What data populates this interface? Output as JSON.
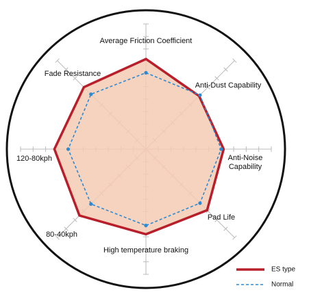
{
  "chart_data": {
    "type": "radar",
    "categories": [
      "Average Friction Coefficient",
      "Anti-Dust Capability",
      "Anti-Noise Capability",
      "Pad Life",
      "High temperature braking",
      "80-40kph",
      "120-80kph",
      "Fade Resistance"
    ],
    "rlim": [
      0,
      10
    ],
    "rticks": [
      1,
      2,
      3,
      4,
      5,
      6,
      7,
      8,
      9,
      10
    ],
    "series": [
      {
        "name": "ES type",
        "color": "#b81f2a",
        "fill": "#f5cbb3",
        "values": [
          7.2,
          6.0,
          6.2,
          6.9,
          6.8,
          7.5,
          7.3,
          7.0
        ]
      },
      {
        "name": "Normal",
        "color": "#2b8ad4",
        "values": [
          6.1,
          6.1,
          6.0,
          6.1,
          6.1,
          6.2,
          6.2,
          6.2
        ]
      }
    ]
  }
}
